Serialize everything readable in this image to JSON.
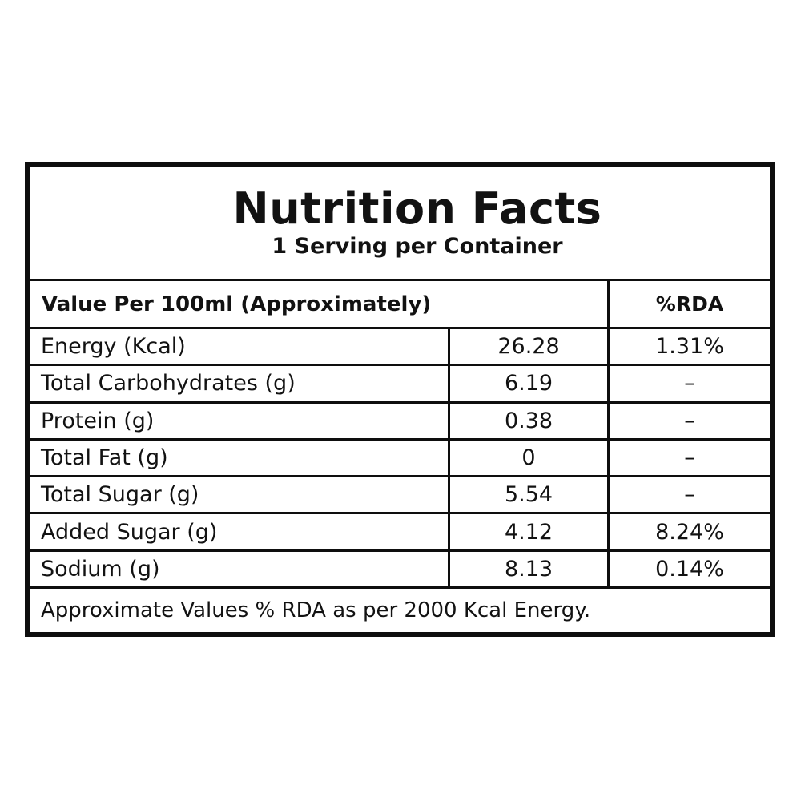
{
  "label": {
    "title": "Nutrition Facts",
    "subtitle": "1 Serving per Container",
    "header": {
      "value_column": "Value Per 100ml (Approximately)",
      "rda_column": "%RDA"
    },
    "rows": [
      {
        "name": "Energy (Kcal)",
        "value": "26.28",
        "rda": "1.31%"
      },
      {
        "name": "Total Carbohydrates (g)",
        "value": "6.19",
        "rda": "–"
      },
      {
        "name": "Protein (g)",
        "value": "0.38",
        "rda": "–"
      },
      {
        "name": "Total Fat (g)",
        "value": "0",
        "rda": "–"
      },
      {
        "name": "Total Sugar (g)",
        "value": "5.54",
        "rda": "–"
      },
      {
        "name": "Added Sugar (g)",
        "value": "4.12",
        "rda": "8.24%"
      },
      {
        "name": "Sodium (g)",
        "value": "8.13",
        "rda": "0.14%"
      }
    ],
    "footnote": "Approximate Values % RDA as per 2000 Kcal Energy.",
    "colors": {
      "border": "#0e0e0e",
      "text": "#121212",
      "background": "#ffffff"
    }
  }
}
